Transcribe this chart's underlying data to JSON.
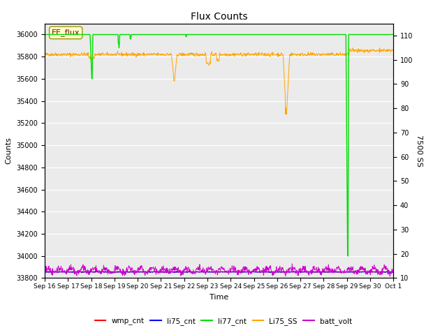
{
  "title": "Flux Counts",
  "xlabel": "Time",
  "ylabel_left": "Counts",
  "ylabel_right": "7500 SS",
  "ylim_left": [
    33800,
    36100
  ],
  "ylim_right": [
    10,
    115
  ],
  "xtick_labels": [
    "Sep 16",
    "Sep 17",
    "Sep 18",
    "Sep 19",
    "Sep 20",
    "Sep 21",
    "Sep 22",
    "Sep 23",
    "Sep 24",
    "Sep 25",
    "Sep 26",
    "Sep 27",
    "Sep 28",
    "Sep 29",
    "Sep 30",
    "Oct 1"
  ],
  "ytick_left": [
    33800,
    34000,
    34200,
    34400,
    34600,
    34800,
    35000,
    35200,
    35400,
    35600,
    35800,
    36000
  ],
  "ytick_right": [
    10,
    20,
    30,
    40,
    50,
    60,
    70,
    80,
    90,
    100,
    110
  ],
  "bg_color": "#ebebeb",
  "legend_labels": [
    "wmp_cnt",
    "li75_cnt",
    "li77_cnt",
    "Li75_SS",
    "batt_volt"
  ],
  "legend_colors": [
    "#ff0000",
    "#0000ff",
    "#00dd00",
    "#ffa500",
    "#cc00cc"
  ],
  "annotation_text": "EE_flux",
  "li77_base": 36000,
  "li75_ss_base": 35820,
  "batt_base": 33870,
  "wmp_base": 33855,
  "li75_cnt_base": 33855
}
